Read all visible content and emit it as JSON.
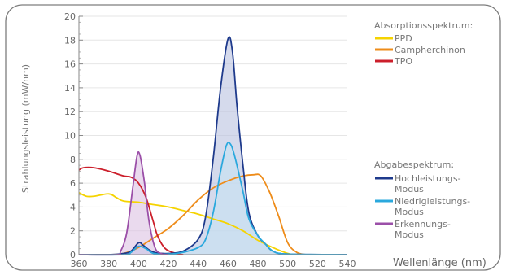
{
  "chart_data": {
    "type": "area",
    "ylabel": "Strahlungsleistung (mW/nm)",
    "xlabel": "Wellenlänge (nm)",
    "xlim": [
      360,
      540
    ],
    "ylim": [
      0,
      20
    ],
    "x_ticks": [
      360,
      380,
      400,
      420,
      440,
      460,
      480,
      500,
      520,
      540
    ],
    "y_ticks": [
      0,
      2,
      4,
      6,
      8,
      10,
      12,
      14,
      16,
      18,
      20
    ],
    "absorption_legend_title": "Absorptionsspektrum:",
    "emission_legend_title": "Abgabespektrum:",
    "absorption_series": [
      {
        "name": "PPD",
        "color": "#f5d300",
        "points": [
          [
            360,
            5.2
          ],
          [
            365,
            4.9
          ],
          [
            370,
            4.9
          ],
          [
            380,
            5.1
          ],
          [
            385,
            4.8
          ],
          [
            390,
            4.5
          ],
          [
            400,
            4.4
          ],
          [
            410,
            4.2
          ],
          [
            420,
            4.0
          ],
          [
            430,
            3.7
          ],
          [
            440,
            3.4
          ],
          [
            450,
            3.0
          ],
          [
            460,
            2.6
          ],
          [
            470,
            2.0
          ],
          [
            480,
            1.2
          ],
          [
            490,
            0.6
          ],
          [
            500,
            0.1
          ],
          [
            505,
            0
          ]
        ]
      },
      {
        "name": "Campherchinon",
        "color": "#ee8c1a",
        "points": [
          [
            360,
            0
          ],
          [
            380,
            0
          ],
          [
            390,
            0.1
          ],
          [
            400,
            0.6
          ],
          [
            410,
            1.4
          ],
          [
            420,
            2.2
          ],
          [
            430,
            3.3
          ],
          [
            440,
            4.6
          ],
          [
            450,
            5.6
          ],
          [
            460,
            6.2
          ],
          [
            470,
            6.6
          ],
          [
            477,
            6.7
          ],
          [
            482,
            6.6
          ],
          [
            488,
            5.2
          ],
          [
            494,
            3.2
          ],
          [
            500,
            1.0
          ],
          [
            506,
            0.2
          ],
          [
            512,
            0
          ]
        ]
      },
      {
        "name": "TPO",
        "color": "#cc1f2b",
        "points": [
          [
            360,
            7.1
          ],
          [
            363,
            7.3
          ],
          [
            370,
            7.3
          ],
          [
            380,
            7.0
          ],
          [
            390,
            6.6
          ],
          [
            395,
            6.5
          ],
          [
            400,
            6.0
          ],
          [
            405,
            4.8
          ],
          [
            410,
            2.7
          ],
          [
            413,
            1.5
          ],
          [
            418,
            0.5
          ],
          [
            425,
            0.1
          ],
          [
            430,
            0
          ]
        ]
      }
    ],
    "emission_series": [
      {
        "name": "Hochleistungs-\nModus",
        "label_lines": [
          "Hochleistungs-",
          "Modus"
        ],
        "color": "#1e3a8c",
        "fill": "#b9c2e0",
        "points": [
          [
            360,
            0
          ],
          [
            380,
            0
          ],
          [
            390,
            0.1
          ],
          [
            395,
            0.3
          ],
          [
            400,
            1.0
          ],
          [
            403,
            0.8
          ],
          [
            407,
            0.4
          ],
          [
            412,
            0.15
          ],
          [
            420,
            0.1
          ],
          [
            430,
            0.3
          ],
          [
            440,
            1.3
          ],
          [
            445,
            3.2
          ],
          [
            450,
            8.0
          ],
          [
            455,
            14.0
          ],
          [
            460,
            18.1
          ],
          [
            463,
            17.0
          ],
          [
            466,
            12.5
          ],
          [
            470,
            7.5
          ],
          [
            474,
            3.5
          ],
          [
            480,
            1.6
          ],
          [
            485,
            0.9
          ],
          [
            490,
            0.3
          ],
          [
            500,
            0.05
          ],
          [
            540,
            0
          ]
        ]
      },
      {
        "name": "Niedrigleistungs-\nModus",
        "label_lines": [
          "Niedrigleistungs-",
          "Modus"
        ],
        "color": "#2aa8dd",
        "fill": "#c7e3f3",
        "points": [
          [
            360,
            0
          ],
          [
            390,
            0
          ],
          [
            395,
            0.2
          ],
          [
            400,
            0.7
          ],
          [
            405,
            0.5
          ],
          [
            410,
            0.1
          ],
          [
            420,
            0.05
          ],
          [
            430,
            0.2
          ],
          [
            440,
            0.6
          ],
          [
            445,
            1.3
          ],
          [
            450,
            3.5
          ],
          [
            455,
            7.0
          ],
          [
            459,
            9.2
          ],
          [
            462,
            9.2
          ],
          [
            465,
            8.0
          ],
          [
            470,
            5.3
          ],
          [
            474,
            3.0
          ],
          [
            480,
            1.6
          ],
          [
            485,
            0.9
          ],
          [
            490,
            0.3
          ],
          [
            500,
            0.05
          ],
          [
            540,
            0
          ]
        ]
      },
      {
        "name": "Erkennungs-\nModus",
        "label_lines": [
          "Erkennungs-",
          "Modus"
        ],
        "color": "#9b4fa8",
        "fill": "#dcc2e2",
        "points": [
          [
            360,
            0
          ],
          [
            385,
            0
          ],
          [
            388,
            0.3
          ],
          [
            392,
            1.8
          ],
          [
            396,
            5.5
          ],
          [
            399,
            8.3
          ],
          [
            401,
            8.3
          ],
          [
            404,
            6.0
          ],
          [
            407,
            2.8
          ],
          [
            411,
            0.6
          ],
          [
            415,
            0.1
          ],
          [
            420,
            0
          ]
        ]
      }
    ]
  }
}
